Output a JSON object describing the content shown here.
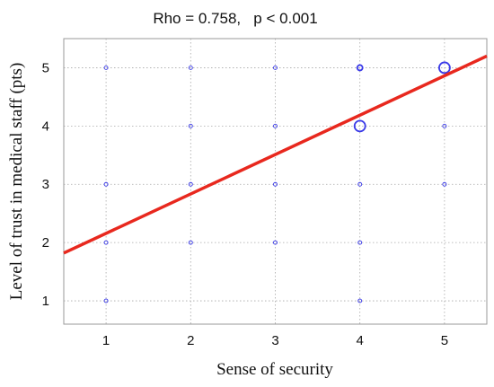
{
  "chart_data": {
    "type": "scatter",
    "title": "Rho = 0.758,   p < 0.001",
    "xlabel": "Sense of security",
    "ylabel": "Level of trust in medical staff (pts)",
    "xlim": [
      0.5,
      5.5
    ],
    "ylim": [
      0.6,
      5.5
    ],
    "xticks": [
      1,
      2,
      3,
      4,
      5
    ],
    "yticks": [
      1,
      2,
      3,
      4,
      5
    ],
    "grid": true,
    "points": [
      {
        "x": 1,
        "y": 1,
        "size": 1
      },
      {
        "x": 1,
        "y": 2,
        "size": 1
      },
      {
        "x": 1,
        "y": 3,
        "size": 1
      },
      {
        "x": 1,
        "y": 5,
        "size": 1
      },
      {
        "x": 2,
        "y": 2,
        "size": 1
      },
      {
        "x": 2,
        "y": 3,
        "size": 1
      },
      {
        "x": 2,
        "y": 4,
        "size": 1
      },
      {
        "x": 2,
        "y": 5,
        "size": 1
      },
      {
        "x": 3,
        "y": 2,
        "size": 1
      },
      {
        "x": 3,
        "y": 3,
        "size": 1
      },
      {
        "x": 3,
        "y": 4,
        "size": 1
      },
      {
        "x": 3,
        "y": 5,
        "size": 1
      },
      {
        "x": 4,
        "y": 1,
        "size": 1
      },
      {
        "x": 4,
        "y": 2,
        "size": 1
      },
      {
        "x": 4,
        "y": 3,
        "size": 1
      },
      {
        "x": 4,
        "y": 4,
        "size": 3
      },
      {
        "x": 4,
        "y": 5,
        "size": 1.5
      },
      {
        "x": 5,
        "y": 3,
        "size": 1
      },
      {
        "x": 5,
        "y": 4,
        "size": 1
      },
      {
        "x": 5,
        "y": 5,
        "size": 3
      }
    ],
    "regression_line": {
      "x": [
        0.5,
        5.5
      ],
      "y": [
        1.82,
        5.2
      ]
    },
    "colors": {
      "points": "#3a3ae8",
      "line": "#e8281e",
      "grid": "#a8a8a8",
      "frame": "#9a9a9a"
    }
  }
}
